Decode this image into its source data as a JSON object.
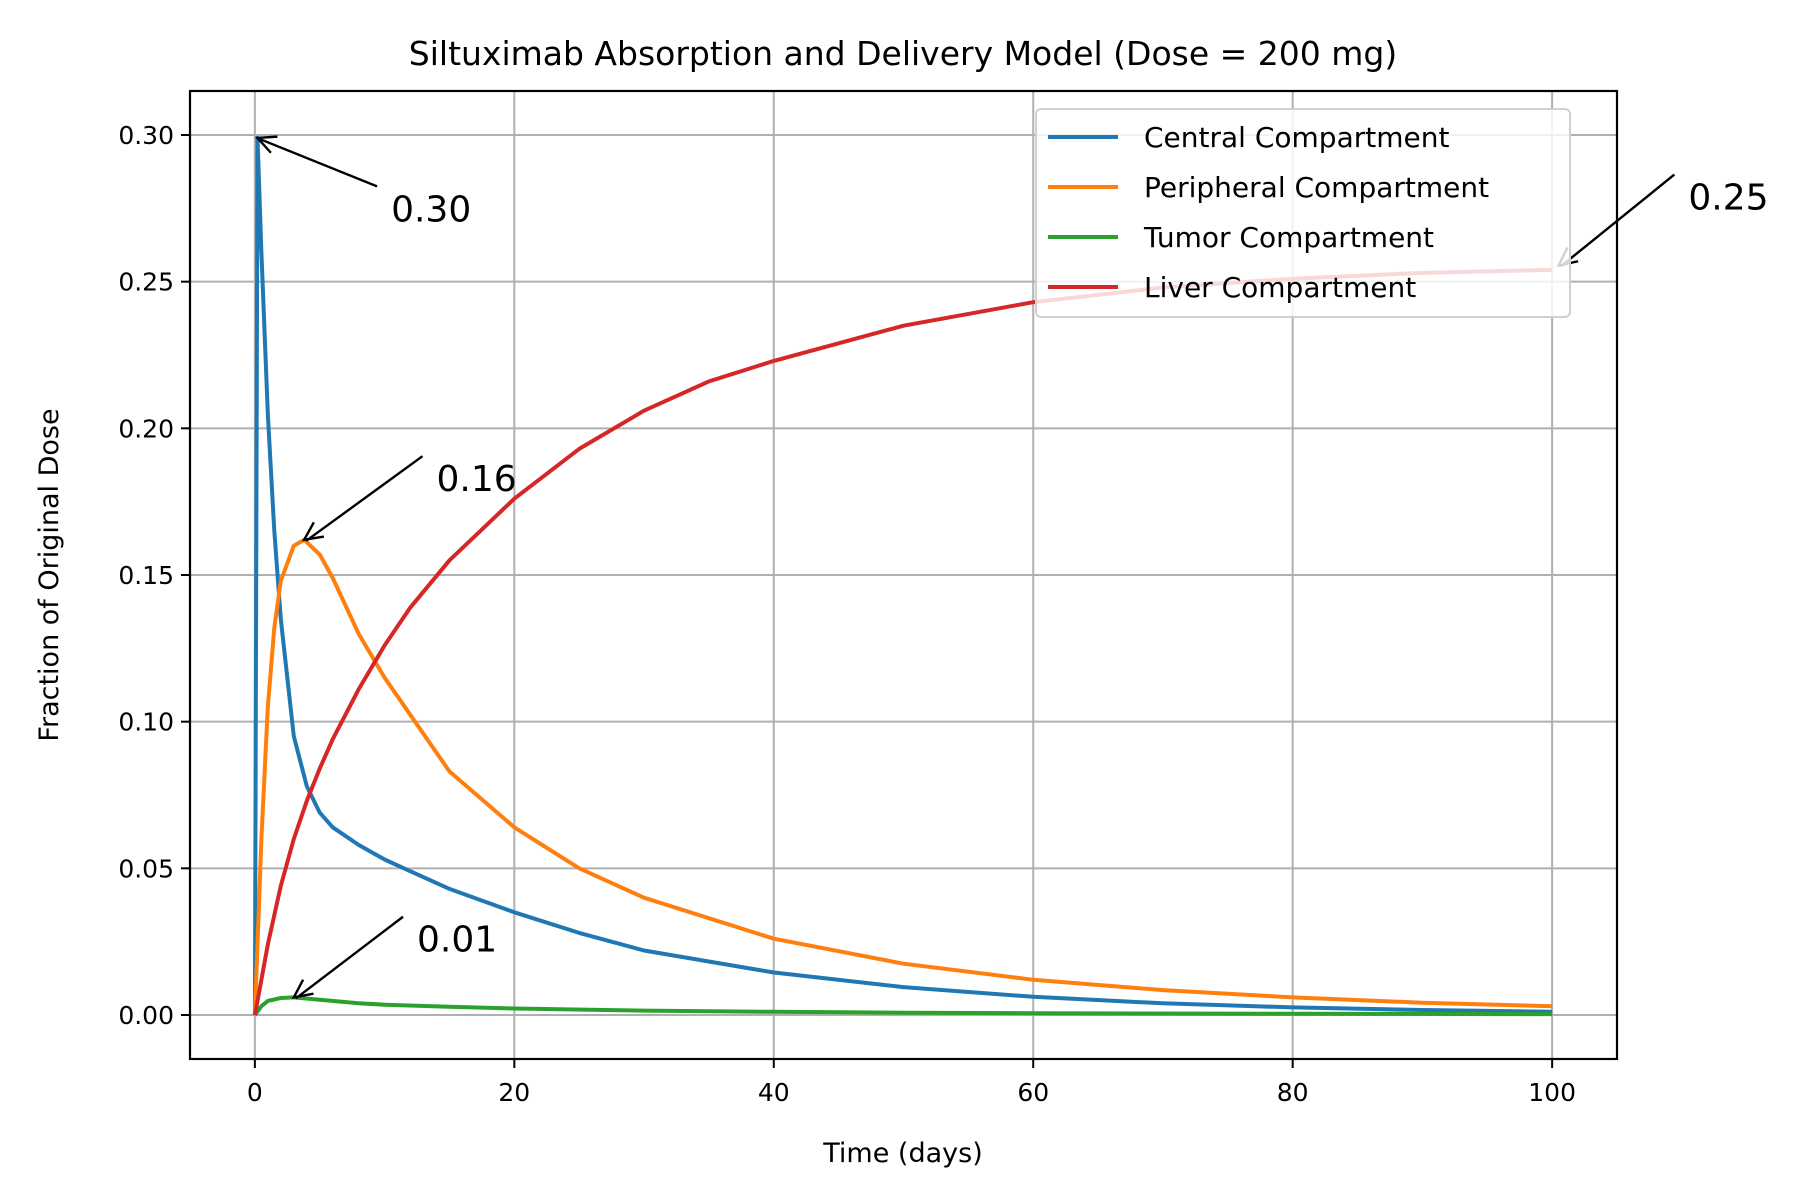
{
  "chart_data": {
    "type": "line",
    "title": "Siltuximab Absorption and Delivery Model (Dose = 200 mg)",
    "xlabel": "Time (days)",
    "ylabel": "Fraction of Original Dose",
    "xlim": [
      -5,
      105
    ],
    "ylim": [
      -0.015,
      0.315
    ],
    "x_ticks": [
      0,
      20,
      40,
      60,
      80,
      100
    ],
    "x_tick_labels": [
      "0",
      "20",
      "40",
      "60",
      "80",
      "100"
    ],
    "y_ticks": [
      0.0,
      0.05,
      0.1,
      0.15,
      0.2,
      0.25,
      0.3
    ],
    "y_tick_labels": [
      "0.00",
      "0.05",
      "0.10",
      "0.15",
      "0.20",
      "0.25",
      "0.30"
    ],
    "grid": true,
    "legend_position": "top-right",
    "series": [
      {
        "name": "Central Compartment",
        "color": "#1f77b4",
        "x": [
          0,
          0.2,
          0.5,
          1,
          1.5,
          2,
          3,
          4,
          5,
          6,
          8,
          10,
          12,
          15,
          20,
          25,
          30,
          40,
          50,
          60,
          70,
          80,
          90,
          100
        ],
        "y": [
          0,
          0.299,
          0.26,
          0.205,
          0.165,
          0.135,
          0.095,
          0.078,
          0.069,
          0.064,
          0.058,
          0.053,
          0.049,
          0.043,
          0.035,
          0.028,
          0.022,
          0.0145,
          0.0095,
          0.0062,
          0.004,
          0.0026,
          0.0017,
          0.0011
        ]
      },
      {
        "name": "Peripheral Compartment",
        "color": "#ff7f0e",
        "x": [
          0,
          0.5,
          1,
          1.5,
          2,
          3,
          3.8,
          5,
          6,
          8,
          10,
          15,
          20,
          25,
          30,
          40,
          50,
          60,
          70,
          80,
          90,
          100
        ],
        "y": [
          0,
          0.06,
          0.105,
          0.132,
          0.148,
          0.16,
          0.162,
          0.157,
          0.149,
          0.13,
          0.115,
          0.083,
          0.064,
          0.05,
          0.04,
          0.026,
          0.0175,
          0.012,
          0.0085,
          0.006,
          0.0042,
          0.003
        ]
      },
      {
        "name": "Tumor Compartment",
        "color": "#2ca02c",
        "x": [
          0,
          0.5,
          1,
          2,
          3,
          5,
          8,
          10,
          15,
          20,
          30,
          40,
          50,
          60,
          80,
          100
        ],
        "y": [
          0,
          0.003,
          0.0048,
          0.0058,
          0.006,
          0.0052,
          0.004,
          0.0035,
          0.0028,
          0.0022,
          0.0015,
          0.0011,
          0.0008,
          0.0006,
          0.0004,
          0.0003
        ]
      },
      {
        "name": "Liver Compartment",
        "color": "#d62728",
        "x": [
          0,
          0.5,
          1,
          2,
          3,
          4,
          5,
          6,
          8,
          10,
          12,
          15,
          20,
          25,
          30,
          35,
          40,
          50,
          60,
          70,
          80,
          90,
          100
        ],
        "y": [
          0,
          0.012,
          0.024,
          0.044,
          0.06,
          0.073,
          0.084,
          0.094,
          0.111,
          0.126,
          0.139,
          0.155,
          0.176,
          0.193,
          0.206,
          0.216,
          0.223,
          0.235,
          0.243,
          0.248,
          0.251,
          0.253,
          0.254
        ]
      }
    ],
    "annotations": [
      {
        "text": "0.30",
        "x": 0.2,
        "y": 0.299,
        "text_x": 10.5,
        "text_y": 0.275
      },
      {
        "text": "0.16",
        "x": 3.8,
        "y": 0.162,
        "text_x": 14,
        "text_y": 0.183
      },
      {
        "text": "0.01",
        "x": 3,
        "y": 0.006,
        "text_x": 12.5,
        "text_y": 0.026
      },
      {
        "text": "0.25",
        "x": 100.5,
        "y": 0.2555,
        "text_x": 110.5,
        "text_y": 0.279
      }
    ]
  }
}
